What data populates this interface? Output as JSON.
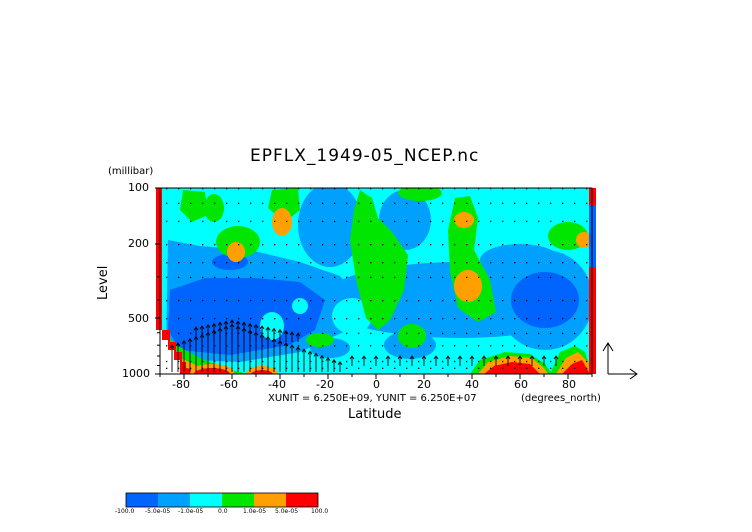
{
  "chart_data": {
    "type": "heatmap",
    "title": "EPFLX_1949-05_NCEP.nc",
    "xlabel": "Latitude",
    "ylabel": "Level",
    "y_units": "(millibar)",
    "x_units": "(degrees_north)",
    "unit_note": "XUNIT = 6.250E+09, YUNIT = 6.250E+07",
    "xlim": [
      -90,
      90
    ],
    "ylim": [
      1000,
      100
    ],
    "y_scale": "log",
    "x_ticks": [
      "-80",
      "-60",
      "-40",
      "-20",
      "0",
      "20",
      "40",
      "60",
      "80"
    ],
    "y_ticks": [
      "100",
      "200",
      "500",
      "1000"
    ],
    "colorbar": {
      "colors": [
        "#0064ff",
        "#00a0ff",
        "#00ffff",
        "#00e600",
        "#ffa000",
        "#ff0000"
      ],
      "tick_labels": [
        "-100.0",
        "-5.0e-05",
        "-1.0e-05",
        "0.0",
        "1.0e-05",
        "5.0e-05",
        "100.0"
      ]
    },
    "overlay": "EP flux vectors (arrows) on contour field"
  }
}
